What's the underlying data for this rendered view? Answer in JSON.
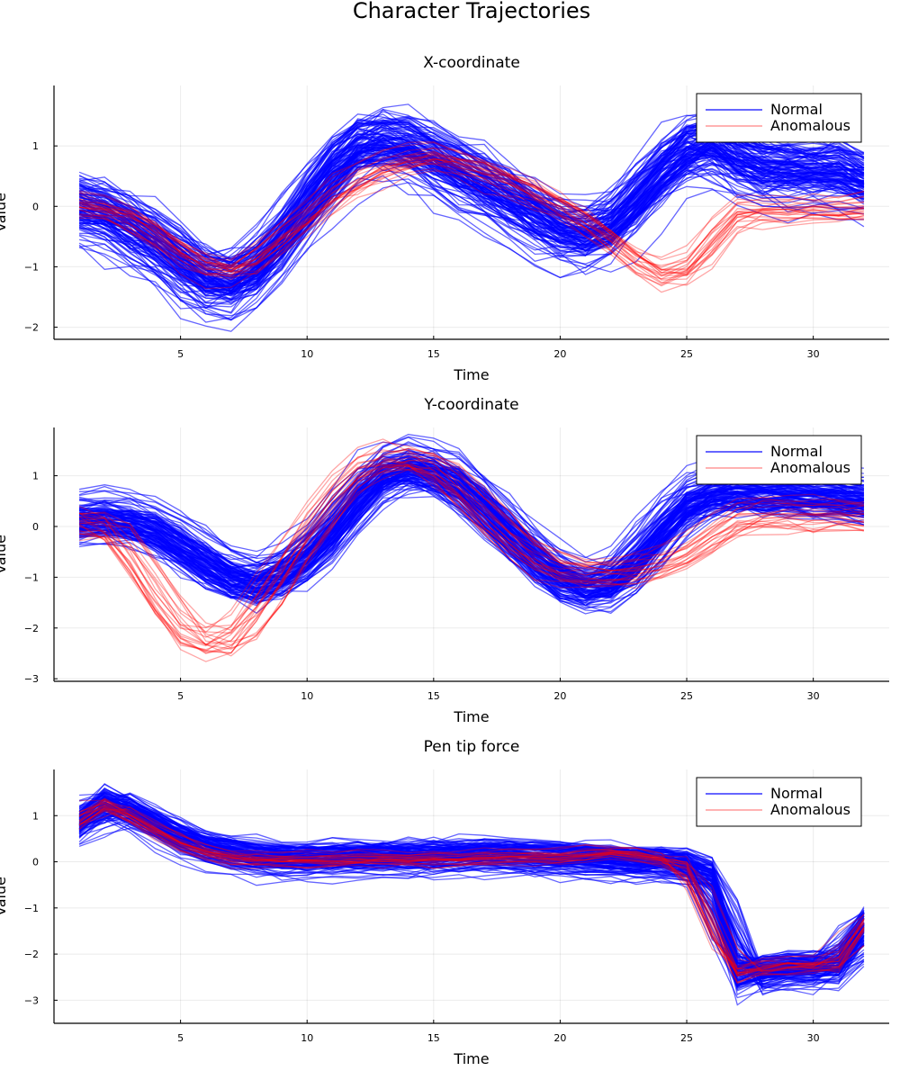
{
  "figure_title": "Character Trajectories",
  "chart_data": [
    {
      "type": "line",
      "title": "X-coordinate",
      "xlabel": "Time",
      "ylabel": "Value",
      "xlim": [
        0,
        33
      ],
      "ylim": [
        -2.2,
        2.0
      ],
      "xticks": [
        5,
        10,
        15,
        20,
        25,
        30
      ],
      "yticks": [
        -2,
        -1,
        0,
        1
      ],
      "grid": true,
      "legend": {
        "position": "top-right",
        "entries": [
          "Normal",
          "Anomalous"
        ]
      },
      "x": [
        1,
        2,
        3,
        4,
        5,
        6,
        7,
        8,
        9,
        10,
        11,
        12,
        13,
        14,
        15,
        16,
        17,
        18,
        19,
        20,
        21,
        22,
        23,
        24,
        25,
        26,
        27,
        28,
        29,
        30,
        31,
        32
      ],
      "series": [
        {
          "name": "Normal",
          "color": "#0000ff",
          "opacity": 0.6,
          "count": 120,
          "spread": 0.3,
          "mean": [
            0.0,
            -0.1,
            -0.35,
            -0.6,
            -0.95,
            -1.25,
            -1.3,
            -1.05,
            -0.55,
            0.05,
            0.6,
            1.0,
            1.1,
            1.0,
            0.8,
            0.55,
            0.35,
            0.1,
            -0.15,
            -0.4,
            -0.5,
            -0.35,
            0.1,
            0.6,
            0.95,
            1.1,
            0.75,
            0.6,
            0.6,
            0.6,
            0.6,
            0.4
          ]
        },
        {
          "name": "Anomalous",
          "color": "#ff0000",
          "opacity": 0.35,
          "count": 22,
          "spread": 0.15,
          "mean": [
            0.05,
            0.0,
            -0.2,
            -0.45,
            -0.75,
            -1.0,
            -1.05,
            -0.85,
            -0.5,
            -0.15,
            0.2,
            0.45,
            0.65,
            0.8,
            0.85,
            0.75,
            0.6,
            0.45,
            0.25,
            0.05,
            -0.25,
            -0.55,
            -0.9,
            -1.15,
            -1.05,
            -0.55,
            -0.05,
            -0.05,
            -0.05,
            -0.05,
            -0.05,
            0.0
          ]
        }
      ]
    },
    {
      "type": "line",
      "title": "Y-coordinate",
      "xlabel": "Time",
      "ylabel": "Value",
      "xlim": [
        0,
        33
      ],
      "ylim": [
        -3.05,
        1.95
      ],
      "xticks": [
        5,
        10,
        15,
        20,
        25,
        30
      ],
      "yticks": [
        -3,
        -2,
        -1,
        0,
        1
      ],
      "grid": true,
      "legend": {
        "position": "top-right",
        "entries": [
          "Normal",
          "Anomalous"
        ]
      },
      "x": [
        1,
        2,
        3,
        4,
        5,
        6,
        7,
        8,
        9,
        10,
        11,
        12,
        13,
        14,
        15,
        16,
        17,
        18,
        19,
        20,
        21,
        22,
        23,
        24,
        25,
        26,
        27,
        28,
        29,
        30,
        31,
        32
      ],
      "series": [
        {
          "name": "Normal",
          "color": "#0000ff",
          "opacity": 0.6,
          "count": 120,
          "spread": 0.25,
          "mean": [
            0.15,
            0.2,
            0.1,
            -0.05,
            -0.35,
            -0.7,
            -1.0,
            -1.15,
            -0.95,
            -0.6,
            -0.1,
            0.55,
            1.05,
            1.2,
            1.1,
            0.85,
            0.4,
            -0.1,
            -0.6,
            -1.0,
            -1.2,
            -1.15,
            -0.7,
            -0.1,
            0.45,
            0.65,
            0.7,
            0.65,
            0.65,
            0.6,
            0.6,
            0.5
          ]
        },
        {
          "name": "Anomalous",
          "color": "#ff0000",
          "opacity": 0.35,
          "count": 22,
          "spread": 0.2,
          "mean": [
            0.1,
            0.05,
            -0.6,
            -1.4,
            -2.1,
            -2.35,
            -2.2,
            -1.6,
            -0.8,
            0.0,
            0.65,
            1.15,
            1.35,
            1.35,
            1.15,
            0.7,
            0.2,
            -0.3,
            -0.65,
            -0.85,
            -0.9,
            -0.9,
            -0.85,
            -0.75,
            -0.5,
            -0.15,
            0.2,
            0.25,
            0.25,
            0.25,
            0.25,
            0.2
          ]
        }
      ]
    },
    {
      "type": "line",
      "title": "Pen tip force",
      "xlabel": "Time",
      "ylabel": "Value",
      "xlim": [
        0,
        33
      ],
      "ylim": [
        -3.5,
        2.0
      ],
      "xticks": [
        5,
        10,
        15,
        20,
        25,
        30
      ],
      "yticks": [
        -3,
        -2,
        -1,
        0,
        1
      ],
      "grid": true,
      "legend": {
        "position": "top-right",
        "entries": [
          "Normal",
          "Anomalous"
        ]
      },
      "x": [
        1,
        2,
        3,
        4,
        5,
        6,
        7,
        8,
        9,
        10,
        11,
        12,
        13,
        14,
        15,
        16,
        17,
        18,
        19,
        20,
        21,
        22,
        23,
        24,
        25,
        26,
        27,
        28,
        29,
        30,
        31,
        32
      ],
      "series": [
        {
          "name": "Normal",
          "color": "#0000ff",
          "opacity": 0.6,
          "count": 120,
          "spread": 0.2,
          "mean": [
            0.8,
            1.35,
            1.1,
            0.8,
            0.5,
            0.3,
            0.2,
            0.12,
            0.08,
            0.08,
            0.1,
            0.12,
            0.12,
            0.12,
            0.12,
            0.15,
            0.18,
            0.15,
            0.12,
            0.1,
            0.1,
            0.05,
            0.0,
            0.0,
            -0.05,
            -0.3,
            -2.6,
            -2.35,
            -2.3,
            -2.3,
            -2.3,
            -1.3
          ]
        },
        {
          "name": "Anomalous",
          "color": "#ff0000",
          "opacity": 0.35,
          "count": 22,
          "spread": 0.12,
          "mean": [
            0.85,
            1.3,
            1.0,
            0.7,
            0.4,
            0.2,
            0.08,
            0.05,
            0.03,
            0.03,
            0.03,
            0.05,
            0.05,
            0.05,
            0.05,
            0.05,
            0.08,
            0.1,
            0.1,
            0.1,
            0.15,
            0.2,
            0.15,
            0.05,
            -0.05,
            -1.3,
            -2.5,
            -2.3,
            -2.25,
            -2.25,
            -2.25,
            -1.3
          ]
        }
      ]
    }
  ]
}
